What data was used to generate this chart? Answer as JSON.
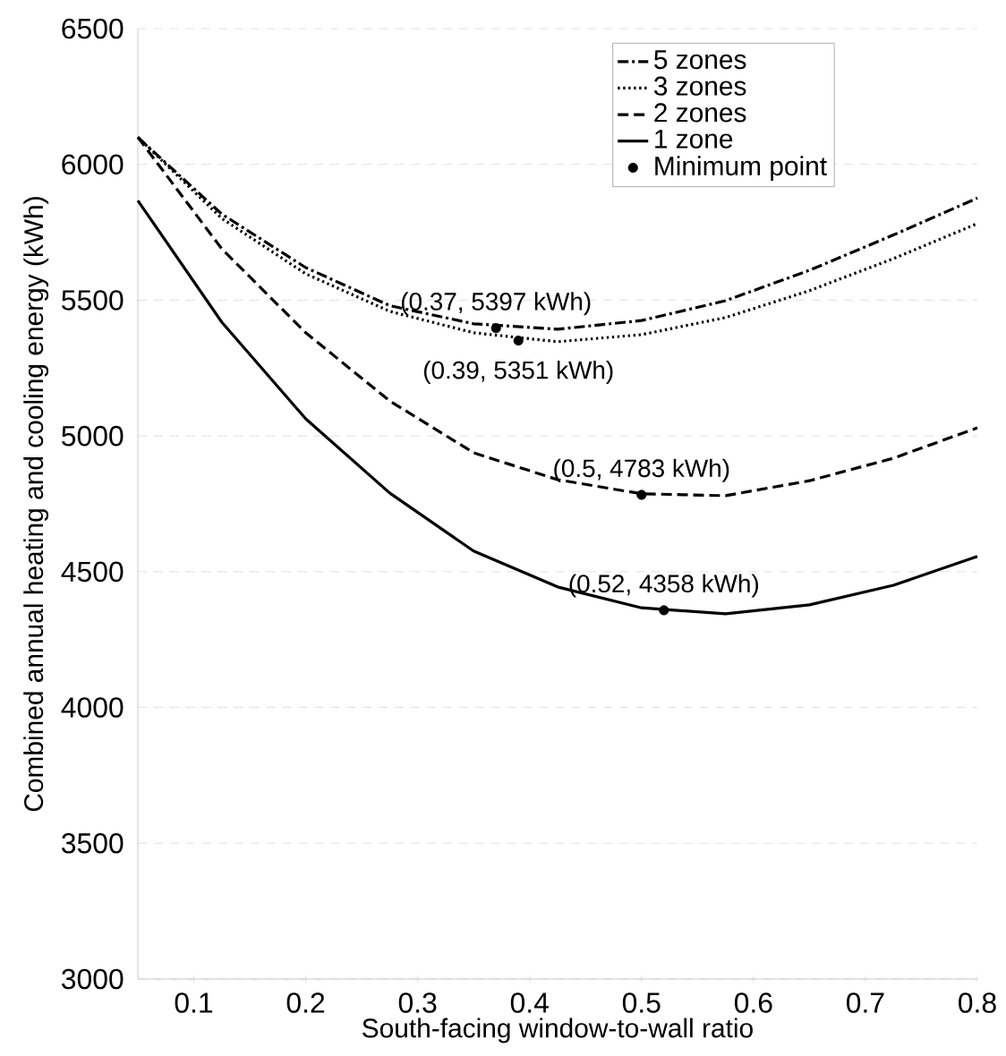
{
  "chart_data": {
    "type": "line",
    "xlabel": "South-facing window-to-wall ratio",
    "ylabel": "Combined annual heating and cooling energy (kWh)",
    "xlim": [
      0.05,
      0.8
    ],
    "ylim": [
      3000,
      6500
    ],
    "xticks": [
      0.1,
      0.2,
      0.3,
      0.4,
      0.5,
      0.6,
      0.7,
      0.8
    ],
    "yticks": [
      3000,
      3500,
      4000,
      4500,
      5000,
      5500,
      6000,
      6500
    ],
    "grid": "y",
    "legend": "top right",
    "series": [
      {
        "name": "5 zones",
        "color": "#000000",
        "line_style": "dashdot",
        "marker": "none",
        "x": [
          0.05,
          0.125,
          0.2,
          0.275,
          0.35,
          0.425,
          0.5,
          0.575,
          0.65,
          0.725,
          0.8
        ],
        "values": [
          6100,
          5817,
          5620,
          5480,
          5413,
          5393,
          5425,
          5498,
          5610,
          5740,
          5876
        ]
      },
      {
        "name": "3 zones",
        "color": "#000000",
        "line_style": "dotted",
        "marker": "none",
        "x": [
          0.05,
          0.125,
          0.2,
          0.275,
          0.35,
          0.425,
          0.5,
          0.575,
          0.65,
          0.725,
          0.8
        ],
        "values": [
          6100,
          5801,
          5597,
          5459,
          5380,
          5347,
          5373,
          5436,
          5535,
          5653,
          5782
        ]
      },
      {
        "name": "2 zones",
        "color": "#000000",
        "line_style": "dashed",
        "marker": "none",
        "x": [
          0.05,
          0.125,
          0.2,
          0.275,
          0.35,
          0.425,
          0.5,
          0.575,
          0.65,
          0.725,
          0.8
        ],
        "values": [
          6100,
          5689,
          5380,
          5129,
          4938,
          4839,
          4787,
          4780,
          4835,
          4918,
          5030
        ]
      },
      {
        "name": "1 zone",
        "color": "#000000",
        "line_style": "solid",
        "marker": "none",
        "x": [
          0.05,
          0.125,
          0.2,
          0.275,
          0.35,
          0.425,
          0.5,
          0.575,
          0.65,
          0.725,
          0.8
        ],
        "values": [
          5867,
          5419,
          5063,
          4790,
          4576,
          4444,
          4367,
          4345,
          4378,
          4450,
          4556
        ]
      },
      {
        "name": "Minimum point",
        "type": "scatter",
        "color": "#000000",
        "marker": "circle",
        "x": [
          0.37,
          0.39,
          0.5,
          0.52
        ],
        "values": [
          5397,
          5351,
          4783,
          4358
        ]
      }
    ],
    "annotations": [
      {
        "text": "(0.37, 5397 kWh)",
        "x": 0.37,
        "y": 5397
      },
      {
        "text": "(0.39, 5351 kWh)",
        "x": 0.39,
        "y": 5351
      },
      {
        "text": "(0.5, 4783 kWh)",
        "x": 0.5,
        "y": 4783
      },
      {
        "text": "(0.52, 4358 kWh)",
        "x": 0.52,
        "y": 4358
      }
    ]
  }
}
